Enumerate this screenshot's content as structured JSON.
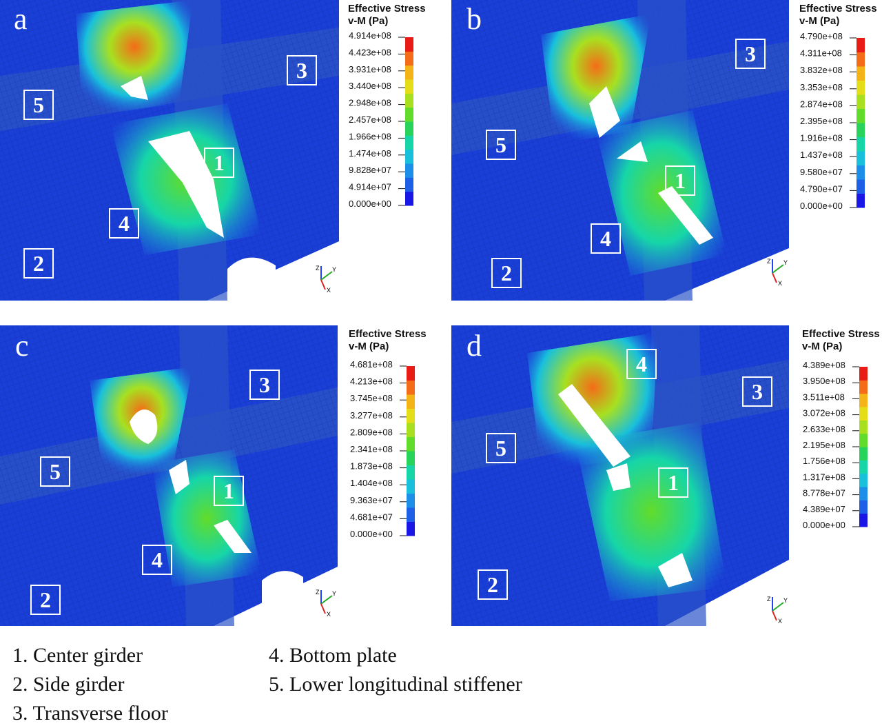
{
  "legend": {
    "title_line1": "Effective Stress",
    "title_line2": "v-M (Pa)",
    "colors": [
      "#1a16e6",
      "#1e5fe8",
      "#1e8fe8",
      "#18c0dc",
      "#16d6a8",
      "#27d35a",
      "#62dc2a",
      "#a8e020",
      "#e4dd18",
      "#f4b418",
      "#f46c18",
      "#e81c14"
    ]
  },
  "panels": [
    {
      "letter": "a",
      "ticks": [
        "4.914e+08",
        "4.423e+08",
        "3.931e+08",
        "3.440e+08",
        "2.948e+08",
        "2.457e+08",
        "1.966e+08",
        "1.474e+08",
        "9.828e+07",
        "4.914e+07",
        "0.000e+00"
      ],
      "labels": [
        "5",
        "3",
        "1",
        "4",
        "2"
      ]
    },
    {
      "letter": "b",
      "ticks": [
        "4.790e+08",
        "4.311e+08",
        "3.832e+08",
        "3.353e+08",
        "2.874e+08",
        "2.395e+08",
        "1.916e+08",
        "1.437e+08",
        "9.580e+07",
        "4.790e+07",
        "0.000e+00"
      ],
      "labels": [
        "5",
        "3",
        "1",
        "4",
        "2"
      ]
    },
    {
      "letter": "c",
      "ticks": [
        "4.681e+08",
        "4.213e+08",
        "3.745e+08",
        "3.277e+08",
        "2.809e+08",
        "2.341e+08",
        "1.873e+08",
        "1.404e+08",
        "9.363e+07",
        "4.681e+07",
        "0.000e+00"
      ],
      "labels": [
        "5",
        "3",
        "1",
        "4",
        "2"
      ]
    },
    {
      "letter": "d",
      "ticks": [
        "4.389e+08",
        "3.950e+08",
        "3.511e+08",
        "3.072e+08",
        "2.633e+08",
        "2.195e+08",
        "1.756e+08",
        "1.317e+08",
        "8.778e+07",
        "4.389e+07",
        "0.000e+00"
      ],
      "labels": [
        "4",
        "3",
        "5",
        "1",
        "2"
      ]
    }
  ],
  "axes": {
    "z": "Z",
    "y": "Y",
    "x": "X"
  },
  "caption": {
    "left": [
      "1. Center girder",
      "2. Side girder",
      "3. Transverse floor"
    ],
    "right": [
      "4. Bottom plate",
      "5. Lower longitudinal stiffener"
    ]
  }
}
